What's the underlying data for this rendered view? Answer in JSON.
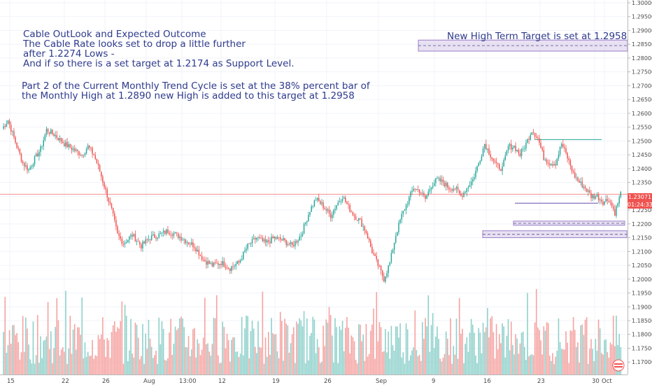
{
  "chart_data": {
    "type": "candlestick",
    "title": "",
    "xlabel": "",
    "ylabel": "",
    "ylim": [
      1.1655,
      1.301
    ],
    "y_ticks": [
      "1.30000",
      "1.29500",
      "1.29000",
      "1.28500",
      "1.28000",
      "1.27500",
      "1.27000",
      "1.26500",
      "1.26000",
      "1.25500",
      "1.25000",
      "1.24500",
      "1.24000",
      "1.23500",
      "1.23000",
      "1.22500",
      "1.22000",
      "1.21500",
      "1.21000",
      "1.20500",
      "1.20000",
      "1.19500",
      "1.19000",
      "1.18500",
      "1.18000",
      "1.17500",
      "1.17000"
    ],
    "x_ticks": [
      "15",
      "22",
      "26",
      "Aug",
      "13:00",
      "12",
      "19",
      "26",
      "Sep",
      "9",
      "16",
      "23",
      "30",
      "Oct"
    ],
    "price_line": 1.2307,
    "price_label": "1.23071",
    "timer_label": "01:24:33",
    "anchors": [
      [
        0,
        1.2545
      ],
      [
        4,
        1.2575
      ],
      [
        10,
        1.248
      ],
      [
        14,
        1.242
      ],
      [
        18,
        1.2395
      ],
      [
        22,
        1.2435
      ],
      [
        26,
        1.247
      ],
      [
        30,
        1.254
      ],
      [
        36,
        1.252
      ],
      [
        42,
        1.249
      ],
      [
        48,
        1.247
      ],
      [
        54,
        1.245
      ],
      [
        58,
        1.248
      ],
      [
        62,
        1.245
      ],
      [
        66,
        1.239
      ],
      [
        70,
        1.232
      ],
      [
        74,
        1.225
      ],
      [
        78,
        1.216
      ],
      [
        82,
        1.213
      ],
      [
        88,
        1.216
      ],
      [
        94,
        1.212
      ],
      [
        100,
        1.215
      ],
      [
        106,
        1.216
      ],
      [
        112,
        1.2175
      ],
      [
        118,
        1.216
      ],
      [
        124,
        1.214
      ],
      [
        130,
        1.212
      ],
      [
        136,
        1.207
      ],
      [
        142,
        1.205
      ],
      [
        148,
        1.206
      ],
      [
        154,
        1.204
      ],
      [
        160,
        1.206
      ],
      [
        166,
        1.212
      ],
      [
        172,
        1.215
      ],
      [
        178,
        1.213
      ],
      [
        184,
        1.215
      ],
      [
        190,
        1.214
      ],
      [
        196,
        1.212
      ],
      [
        202,
        1.216
      ],
      [
        208,
        1.225
      ],
      [
        212,
        1.229
      ],
      [
        216,
        1.227
      ],
      [
        222,
        1.223
      ],
      [
        226,
        1.227
      ],
      [
        230,
        1.23
      ],
      [
        234,
        1.226
      ],
      [
        238,
        1.223
      ],
      [
        242,
        1.221
      ],
      [
        246,
        1.217
      ],
      [
        250,
        1.21
      ],
      [
        254,
        1.205
      ],
      [
        258,
        1.2
      ],
      [
        262,
        1.206
      ],
      [
        266,
        1.216
      ],
      [
        270,
        1.223
      ],
      [
        274,
        1.228
      ],
      [
        278,
        1.233
      ],
      [
        282,
        1.232
      ],
      [
        286,
        1.229
      ],
      [
        290,
        1.234
      ],
      [
        294,
        1.236
      ],
      [
        298,
        1.235
      ],
      [
        302,
        1.233
      ],
      [
        306,
        1.233
      ],
      [
        310,
        1.23
      ],
      [
        314,
        1.233
      ],
      [
        318,
        1.236
      ],
      [
        322,
        1.242
      ],
      [
        326,
        1.249
      ],
      [
        330,
        1.245
      ],
      [
        334,
        1.241
      ],
      [
        338,
        1.24
      ],
      [
        342,
        1.248
      ],
      [
        346,
        1.248
      ],
      [
        350,
        1.245
      ],
      [
        354,
        1.249
      ],
      [
        358,
        1.254
      ],
      [
        362,
        1.251
      ],
      [
        366,
        1.244
      ],
      [
        370,
        1.242
      ],
      [
        374,
        1.242
      ],
      [
        378,
        1.249
      ],
      [
        382,
        1.244
      ],
      [
        386,
        1.238
      ],
      [
        390,
        1.235
      ],
      [
        394,
        1.233
      ],
      [
        398,
        1.23
      ],
      [
        402,
        1.23
      ],
      [
        406,
        1.228
      ],
      [
        410,
        1.229
      ],
      [
        414,
        1.224
      ],
      [
        418,
        1.231
      ]
    ],
    "levels": [
      {
        "name": "high-target-zone",
        "type": "band",
        "top": 1.2865,
        "bottom": 1.2825,
        "mid": 1.2845,
        "x_start": 598,
        "x_end": 897
      },
      {
        "name": "support-zone-upper",
        "type": "band",
        "top": 1.221,
        "bottom": 1.2195,
        "mid": 1.2202,
        "x_start": 734,
        "x_end": 893
      },
      {
        "name": "support-zone-lower",
        "type": "band",
        "top": 1.2175,
        "bottom": 1.215,
        "mid": 1.2162,
        "x_start": 690,
        "x_end": 896
      },
      {
        "name": "resistance-line",
        "type": "line",
        "value": 1.2505,
        "x_start": 765,
        "x_end": 860
      },
      {
        "name": "lows-line",
        "type": "line",
        "value": 1.2275,
        "x_start": 736,
        "x_end": 855
      }
    ],
    "colors": {
      "up": "#26a69a",
      "down": "#ef5350",
      "up_volume": "#8fd1cb",
      "down_volume": "#f5a3a1",
      "band_fill": "#d8cdea",
      "band_edge": "#9a7fc9",
      "price_line": "#ef5350"
    }
  },
  "annotations": {
    "left_note": "Cable OutLook and Expected Outcome\nThe Cable Rate looks set to drop a little further\nafter 1.2274 Lows -\nAnd if so there is a set target at 1.2174 as Support Level.",
    "cycle_note": "Part 2 of the Current Monthly Trend Cycle is set at the 38% percent bar of\nthe Monthly High at 1.2890 new High is added to this target at 1.2958",
    "target_note": "New High Term Target is set at 1.2958"
  }
}
